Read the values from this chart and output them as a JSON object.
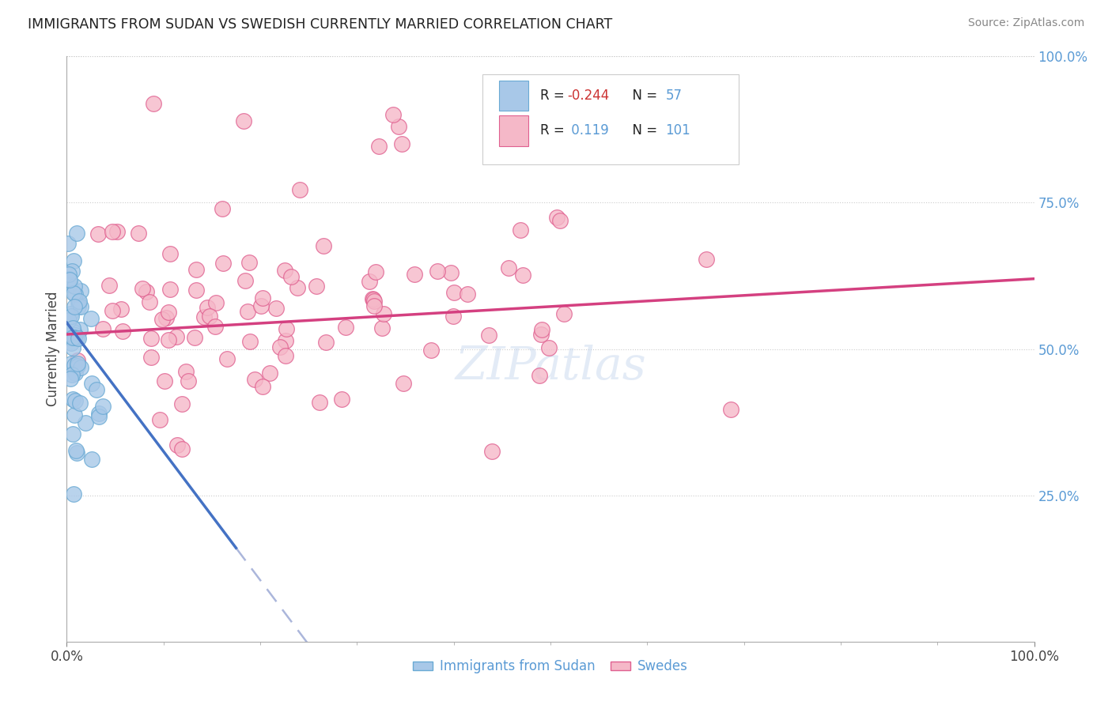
{
  "title": "IMMIGRANTS FROM SUDAN VS SWEDISH CURRENTLY MARRIED CORRELATION CHART",
  "source": "Source: ZipAtlas.com",
  "ylabel": "Currently Married",
  "right_yticks": [
    "100.0%",
    "75.0%",
    "50.0%",
    "25.0%"
  ],
  "right_ytick_vals": [
    1.0,
    0.75,
    0.5,
    0.25
  ],
  "watermark": "ZIPatlas",
  "legend_item1_label": "Immigrants from Sudan",
  "legend_item2_label": "Swedes",
  "r1": -0.244,
  "n1": 57,
  "r2": 0.119,
  "n2": 101,
  "color_blue": "#a8c8e8",
  "color_blue_edge": "#6aaad4",
  "color_pink": "#f5b8c8",
  "color_pink_edge": "#e06090",
  "color_trendline_blue": "#4472c4",
  "color_trendline_pink": "#d44080",
  "color_trendline_dash": "#8898cc",
  "xlim": [
    0.0,
    1.0
  ],
  "ylim": [
    0.0,
    1.0
  ]
}
